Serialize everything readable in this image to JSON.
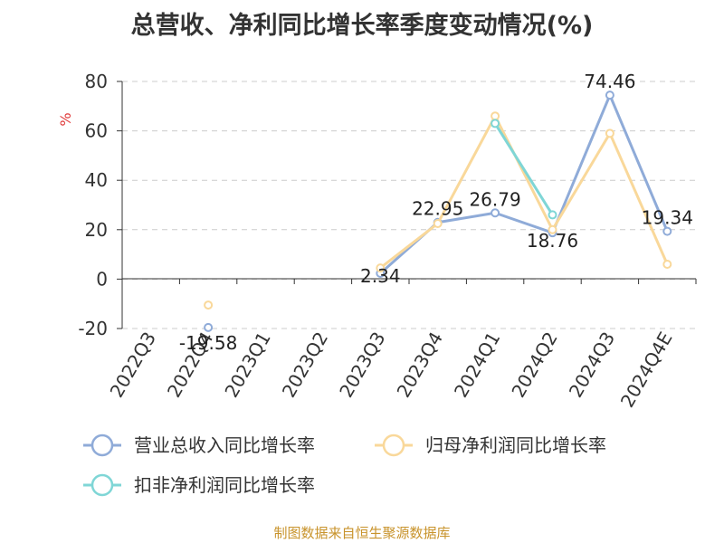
{
  "chart_data": {
    "type": "line",
    "title": "总营收、净利同比增长率季度变动情况(%)",
    "ylabel": "%",
    "ylim": [
      -20,
      80
    ],
    "yticks": [
      -20,
      0,
      20,
      40,
      60,
      80
    ],
    "grid": true,
    "legend_position": "bottom",
    "categories": [
      "2022Q3",
      "2022Q4",
      "2023Q1",
      "2023Q2",
      "2023Q3",
      "2023Q4",
      "2024Q1",
      "2024Q2",
      "2024Q3",
      "2024Q4E"
    ],
    "series": [
      {
        "name": "营业总收入同比增长率",
        "color": "#8fabd8",
        "values": [
          null,
          -19.58,
          null,
          null,
          2.34,
          22.95,
          26.79,
          18.76,
          74.46,
          19.34
        ],
        "labels": [
          "",
          "-19.58",
          "",
          "",
          "2.34",
          "22.95",
          "26.79",
          "18.76",
          "74.46",
          "19.34"
        ]
      },
      {
        "name": "归母净利润同比增长率",
        "color": "#f9d89a",
        "values": [
          null,
          -10.5,
          null,
          null,
          4.5,
          22.5,
          66,
          20,
          59,
          6
        ],
        "labels": [
          "",
          "",
          "",
          "",
          "",
          "",
          "",
          "",
          "",
          ""
        ]
      },
      {
        "name": "扣非净利润同比增长率",
        "color": "#7fd6d6",
        "values": [
          null,
          null,
          null,
          null,
          null,
          null,
          63,
          26,
          null,
          null
        ],
        "labels": [
          "",
          "",
          "",
          "",
          "",
          "",
          "",
          "",
          "",
          ""
        ]
      }
    ]
  },
  "source": "制图数据来自恒生聚源数据库"
}
